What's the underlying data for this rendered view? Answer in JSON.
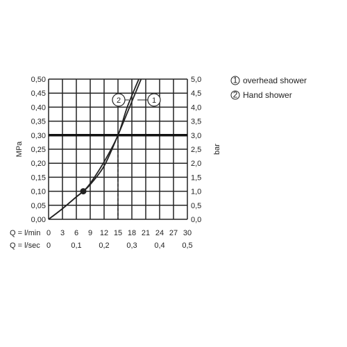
{
  "chart_data": {
    "type": "line",
    "left_axis": {
      "label": "MPa",
      "ticks": [
        "0,00",
        "0,05",
        "0,10",
        "0,15",
        "0,20",
        "0,25",
        "0,30",
        "0,35",
        "0,40",
        "0,45",
        "0,50"
      ],
      "ylim": [
        0,
        0.5
      ]
    },
    "right_axis": {
      "label": "bar",
      "ticks": [
        "0,0",
        "0,5",
        "1,0",
        "1,5",
        "2,0",
        "2,5",
        "3,0",
        "3,5",
        "4,0",
        "4,5",
        "5,0"
      ],
      "ylim": [
        0,
        5
      ]
    },
    "x_axis_lmin": {
      "label": "Q = l/min",
      "ticks": [
        "0",
        "3",
        "6",
        "9",
        "12",
        "15",
        "18",
        "21",
        "24",
        "27",
        "30"
      ],
      "xlim": [
        0,
        30
      ]
    },
    "x_axis_lsec": {
      "label": "Q = l/sec",
      "ticks": [
        {
          "value": 0,
          "label": "0"
        },
        {
          "value": 0.1,
          "label": "0,1"
        },
        {
          "value": 0.2,
          "label": "0,2"
        },
        {
          "value": 0.3,
          "label": "0,3"
        },
        {
          "value": 0.4,
          "label": "0,4"
        },
        {
          "value": 0.5,
          "label": "0,5"
        }
      ]
    },
    "reference_pressure": 0.3,
    "reference_flow": 15,
    "grid": true,
    "series": [
      {
        "name": "overhead shower",
        "marker": "1",
        "x": [
          0,
          3,
          6,
          7.5,
          9,
          12,
          15,
          18,
          20
        ],
        "y": [
          0,
          0.038,
          0.08,
          0.1,
          0.124,
          0.19,
          0.3,
          0.42,
          0.5
        ]
      },
      {
        "name": "Hand shower",
        "marker": "2",
        "x": [
          0,
          3,
          6,
          7.5,
          9,
          12,
          15,
          17,
          19.5
        ],
        "y": [
          0,
          0.038,
          0.08,
          0.1,
          0.128,
          0.205,
          0.3,
          0.4,
          0.5
        ]
      }
    ],
    "operating_point": {
      "x": 7.5,
      "y": 0.1
    },
    "legend": {
      "placement": "top-right",
      "entries": [
        {
          "marker": "1",
          "label": "overhead shower"
        },
        {
          "marker": "2",
          "label": "Hand shower"
        }
      ]
    },
    "colors": {
      "line": "#222222",
      "grid": "#222222",
      "reference": "#111111"
    }
  }
}
